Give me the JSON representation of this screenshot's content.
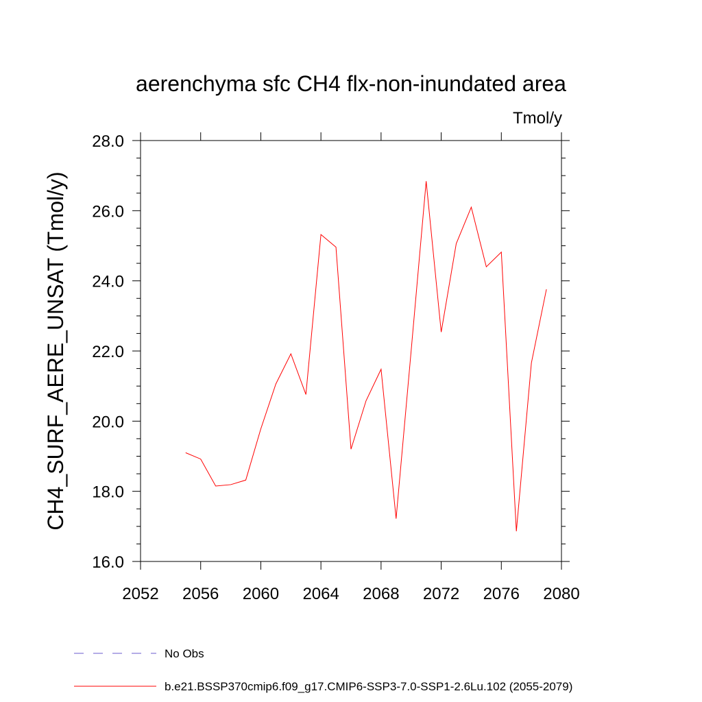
{
  "chart_data": {
    "type": "line",
    "title": "aerenchyma sfc CH4 flx-non-inundated area",
    "units_label": "Tmol/y",
    "xlabel": "",
    "ylabel": "CH4_SURF_AERE_UNSAT  (Tmol/y)",
    "xlim": [
      2052,
      2080
    ],
    "ylim": [
      16.0,
      28.0
    ],
    "x_ticks": [
      2052,
      2056,
      2060,
      2064,
      2068,
      2072,
      2076,
      2080
    ],
    "x_tick_labels": [
      "2052",
      "2056",
      "2060",
      "2064",
      "2068",
      "2072",
      "2076",
      "2080"
    ],
    "y_ticks": [
      16.0,
      18.0,
      20.0,
      22.0,
      24.0,
      26.0,
      28.0
    ],
    "y_tick_labels": [
      "16.0",
      "18.0",
      "20.0",
      "22.0",
      "24.0",
      "26.0",
      "28.0"
    ],
    "grid": false,
    "legend_position": "bottom",
    "x": [
      2055,
      2056,
      2057,
      2058,
      2059,
      2060,
      2061,
      2062,
      2063,
      2064,
      2065,
      2066,
      2067,
      2068,
      2069,
      2070,
      2071,
      2072,
      2073,
      2074,
      2075,
      2076,
      2077,
      2078,
      2079
    ],
    "series": [
      {
        "name": "b.e21.BSSP370cmip6.f09_g17.CMIP6-SSP3-7.0-SSP1-2.6Lu.102 (2055-2079)",
        "color": "#ff0000",
        "dash": "solid",
        "values": [
          19.1,
          18.92,
          18.15,
          18.19,
          18.32,
          19.78,
          21.06,
          21.92,
          20.76,
          25.32,
          24.96,
          19.2,
          20.58,
          21.48,
          17.22,
          22.0,
          26.84,
          22.54,
          25.06,
          26.1,
          24.4,
          24.82,
          16.86,
          21.66,
          23.76
        ]
      }
    ],
    "legend": [
      {
        "label": "No Obs",
        "color": "#6a5acd",
        "dash": "dashed"
      },
      {
        "label": "b.e21.BSSP370cmip6.f09_g17.CMIP6-SSP3-7.0-SSP1-2.6Lu.102 (2055-2079)",
        "color": "#ff0000",
        "dash": "solid"
      }
    ]
  }
}
